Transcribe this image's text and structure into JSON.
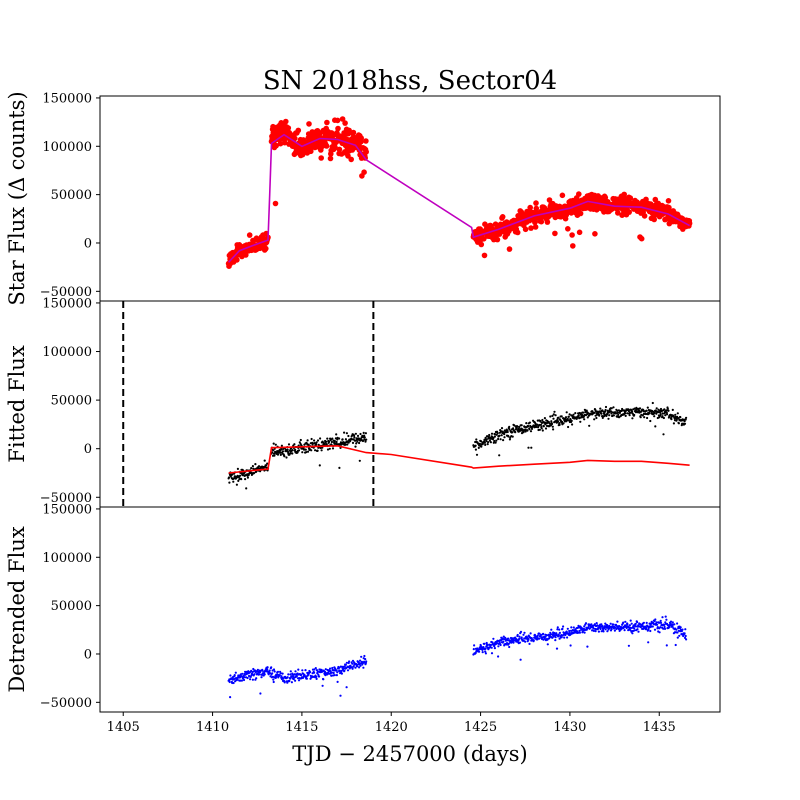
{
  "chart_data": {
    "type": "scatter",
    "title": "SN 2018hss, Sector04",
    "xlabel": "TJD − 2457000 (days)",
    "xlim": [
      1403.7,
      1438.4
    ],
    "xticks": [
      1405,
      1410,
      1415,
      1420,
      1425,
      1430,
      1435
    ],
    "panels": [
      {
        "ylabel": "Star Flux (Δ counts)",
        "ylim": [
          -60000,
          152000
        ],
        "yticks": [
          -50000,
          0,
          50000,
          100000,
          150000
        ],
        "series": [
          {
            "kind": "points",
            "color": "#ff0000",
            "marker": "large",
            "segments": [
              {
                "x": [
                  1410.9,
                  1411.5,
                  1412.2,
                  1413.1
                ],
                "y": [
                  -20000,
                  -8000,
                  -3000,
                  2000
                ],
                "spread": 7000
              },
              {
                "x": [
                  1413.3,
                  1414.0,
                  1415.0,
                  1416.0,
                  1417.0,
                  1418.0,
                  1418.6
                ],
                "y": [
                  110000,
                  113000,
                  100000,
                  107000,
                  108000,
                  103000,
                  92000
                ],
                "spread": 14000
              },
              {
                "x": [
                  1424.6,
                  1426.0,
                  1428.0,
                  1430.0,
                  1431.0,
                  1432.5,
                  1434.0,
                  1435.5,
                  1436.7
                ],
                "y": [
                  8000,
                  14000,
                  28000,
                  36000,
                  42000,
                  39000,
                  37000,
                  30000,
                  18000
                ],
                "spread": 8000
              }
            ]
          },
          {
            "kind": "line",
            "color": "#bf00bf",
            "x": [
              1410.9,
              1411.5,
              1412.2,
              1413.1,
              1413.2,
              1413.3,
              1414.0,
              1415.0,
              1416.0,
              1417.0,
              1418.0,
              1418.6,
              1424.5,
              1424.6,
              1426.0,
              1428.0,
              1430.0,
              1431.0,
              1432.5,
              1434.0,
              1435.5,
              1436.7
            ],
            "y": [
              -20000,
              -8000,
              -3000,
              3000,
              50000,
              103000,
              112000,
              100000,
              108000,
              107000,
              101000,
              86000,
              16000,
              6000,
              14000,
              28000,
              36000,
              43000,
              38000,
              37000,
              30000,
              18000
            ]
          }
        ]
      },
      {
        "ylabel": "Fitted Flux",
        "ylim": [
          -60000,
          152000
        ],
        "yticks": [
          -50000,
          0,
          50000,
          100000,
          150000
        ],
        "vlines": [
          1405.0,
          1419.0
        ],
        "series": [
          {
            "kind": "points",
            "color": "#000000",
            "marker": "small",
            "segments": [
              {
                "x": [
                  1410.9,
                  1412.0,
                  1413.1
                ],
                "y": [
                  -30000,
                  -25000,
                  -18000
                ],
                "spread": 5000
              },
              {
                "x": [
                  1413.3,
                  1414.5,
                  1415.5,
                  1416.5,
                  1417.5,
                  1418.6
                ],
                "y": [
                  -2000,
                  -1000,
                  2000,
                  5000,
                  8000,
                  12000
                ],
                "spread": 6000
              },
              {
                "x": [
                  1424.6,
                  1426.0,
                  1428.0,
                  1430.0,
                  1431.0,
                  1432.5,
                  1434.0,
                  1435.5,
                  1436.5
                ],
                "y": [
                  2000,
                  15000,
                  24000,
                  30000,
                  36000,
                  37000,
                  38000,
                  36000,
                  26000
                ],
                "spread": 5000
              }
            ]
          },
          {
            "kind": "line",
            "color": "#ff0000",
            "x": [
              1410.9,
              1412.5,
              1413.1,
              1413.3,
              1415.0,
              1417.0,
              1418.6,
              1420.0,
              1424.5,
              1424.6,
              1426.0,
              1428.0,
              1430.0,
              1431.0,
              1432.5,
              1434.0,
              1435.5,
              1436.7
            ],
            "y": [
              -25000,
              -22000,
              -21000,
              1000,
              2000,
              3000,
              -4000,
              -6000,
              -19000,
              -20000,
              -18000,
              -16000,
              -14000,
              -12000,
              -13000,
              -13000,
              -15000,
              -17000
            ]
          }
        ]
      },
      {
        "ylabel": "Detrended Flux",
        "ylim": [
          -60000,
          152000
        ],
        "yticks": [
          -50000,
          0,
          50000,
          100000,
          150000
        ],
        "series": [
          {
            "kind": "points",
            "color": "#0000ff",
            "marker": "small",
            "segments": [
              {
                "x": [
                  1410.9,
                  1412.0,
                  1413.1,
                  1414.0,
                  1415.0,
                  1416.0,
                  1417.0,
                  1418.0,
                  1418.6
                ],
                "y": [
                  -28000,
                  -22000,
                  -18000,
                  -25000,
                  -22000,
                  -20000,
                  -18000,
                  -10000,
                  -9000
                ],
                "spread": 5000
              },
              {
                "x": [
                  1424.6,
                  1426.0,
                  1428.0,
                  1430.0,
                  1431.0,
                  1432.5,
                  1434.0,
                  1435.5,
                  1436.5
                ],
                "y": [
                  2000,
                  12000,
                  17000,
                  22000,
                  28000,
                  27000,
                  29000,
                  30000,
                  20000
                ],
                "spread": 5000
              }
            ]
          }
        ]
      }
    ]
  }
}
